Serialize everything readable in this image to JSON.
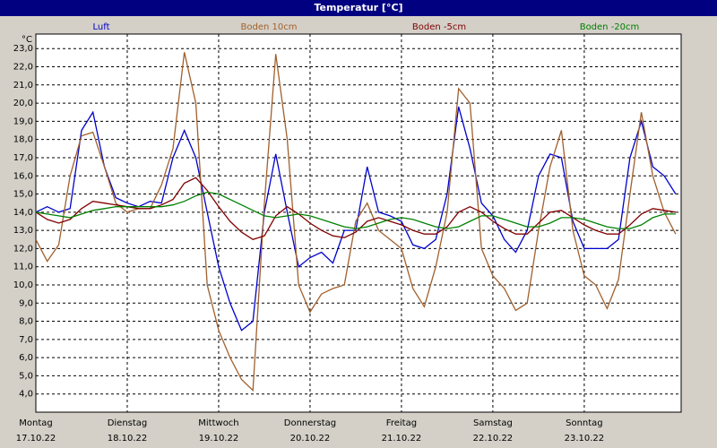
{
  "chart_data": {
    "type": "line",
    "title": "Temperatur [°C]",
    "y_unit": "°C",
    "x": [
      0,
      0.125,
      0.25,
      0.375,
      0.5,
      0.625,
      0.75,
      0.875,
      1,
      1.125,
      1.25,
      1.375,
      1.5,
      1.625,
      1.75,
      1.875,
      2,
      2.125,
      2.25,
      2.375,
      2.5,
      2.625,
      2.75,
      2.875,
      3,
      3.125,
      3.25,
      3.375,
      3.5,
      3.625,
      3.75,
      3.875,
      4,
      4.125,
      4.25,
      4.375,
      4.5,
      4.625,
      4.75,
      4.875,
      5,
      5.125,
      5.25,
      5.375,
      5.5,
      5.625,
      5.75,
      5.875,
      6,
      6.125,
      6.25,
      6.375,
      6.5,
      6.625,
      6.75,
      6.875,
      7
    ],
    "xlim": [
      0,
      7.06
    ],
    "xticks": [
      {
        "value": 0,
        "label": "Montag"
      },
      {
        "value": 1,
        "label": "Dienstag"
      },
      {
        "value": 2,
        "label": "Mittwoch"
      },
      {
        "value": 3,
        "label": "Donnerstag"
      },
      {
        "value": 4,
        "label": "Freitag"
      },
      {
        "value": 5,
        "label": "Samstag"
      },
      {
        "value": 6,
        "label": "Sonntag"
      }
    ],
    "xtick_dates": [
      "17.10.22",
      "18.10.22",
      "19.10.22",
      "20.10.22",
      "21.10.22",
      "22.10.22",
      "23.10.22"
    ],
    "ylim": [
      3,
      23.8
    ],
    "yticks": [
      {
        "value": 4,
        "label": "4,0"
      },
      {
        "value": 5,
        "label": "5,0"
      },
      {
        "value": 6,
        "label": "6,0"
      },
      {
        "value": 7,
        "label": "7,0"
      },
      {
        "value": 8,
        "label": "8,0"
      },
      {
        "value": 9,
        "label": "9,0"
      },
      {
        "value": 10,
        "label": "10,0"
      },
      {
        "value": 11,
        "label": "11,0"
      },
      {
        "value": 12,
        "label": "12,0"
      },
      {
        "value": 13,
        "label": "13,0"
      },
      {
        "value": 14,
        "label": "14,0"
      },
      {
        "value": 15,
        "label": "15,0"
      },
      {
        "value": 16,
        "label": "16,0"
      },
      {
        "value": 17,
        "label": "17,0"
      },
      {
        "value": 18,
        "label": "18,0"
      },
      {
        "value": 19,
        "label": "19,0"
      },
      {
        "value": 20,
        "label": "20,0"
      },
      {
        "value": 21,
        "label": "21,0"
      },
      {
        "value": 22,
        "label": "22,0"
      },
      {
        "value": 23,
        "label": "23,0"
      }
    ],
    "grid": true,
    "series": [
      {
        "name": "Luft",
        "color": "#0000cc",
        "values": [
          14.0,
          14.3,
          14.0,
          14.2,
          18.5,
          19.5,
          16.5,
          14.8,
          14.5,
          14.3,
          14.6,
          14.5,
          17.0,
          18.5,
          17.0,
          14.0,
          11.0,
          9.0,
          7.5,
          8.0,
          14.0,
          17.2,
          14.0,
          11.0,
          11.5,
          11.8,
          11.2,
          13.0,
          13.0,
          16.5,
          14.0,
          13.8,
          13.5,
          12.2,
          12.0,
          12.5,
          15.0,
          19.8,
          17.5,
          14.5,
          13.8,
          12.5,
          11.8,
          13.0,
          16.0,
          17.2,
          17.0,
          13.5,
          12.0,
          12.0,
          12.0,
          12.5,
          17.0,
          19.0,
          16.5,
          16.0,
          15.0
        ]
      },
      {
        "name": "Boden 10cm",
        "color": "#a0602d",
        "values": [
          12.5,
          11.3,
          12.2,
          16.0,
          18.2,
          18.4,
          16.5,
          14.5,
          14.0,
          14.2,
          14.2,
          15.5,
          17.5,
          22.8,
          20.0,
          10.0,
          7.5,
          6.0,
          4.8,
          4.2,
          14.5,
          22.7,
          18.0,
          10.0,
          8.5,
          9.5,
          9.8,
          10.0,
          13.5,
          14.5,
          13.0,
          12.5,
          12.0,
          9.8,
          8.8,
          11.0,
          14.0,
          20.8,
          20.0,
          12.0,
          10.5,
          9.8,
          8.6,
          9.0,
          13.0,
          16.5,
          18.5,
          13.0,
          10.5,
          10.0,
          8.7,
          10.3,
          15.0,
          19.5,
          16.0,
          14.0,
          12.8
        ]
      },
      {
        "name": "Boden -5cm",
        "color": "#800000",
        "values": [
          14.0,
          13.6,
          13.4,
          13.6,
          14.2,
          14.6,
          14.5,
          14.4,
          14.3,
          14.2,
          14.2,
          14.4,
          14.7,
          15.6,
          15.9,
          15.2,
          14.3,
          13.5,
          12.9,
          12.5,
          12.7,
          13.8,
          14.3,
          13.9,
          13.4,
          13.0,
          12.7,
          12.6,
          12.9,
          13.5,
          13.7,
          13.5,
          13.3,
          13.0,
          12.8,
          12.8,
          13.2,
          14.0,
          14.3,
          14.0,
          13.5,
          13.1,
          12.8,
          12.8,
          13.4,
          14.0,
          14.1,
          13.7,
          13.3,
          13.0,
          12.8,
          12.8,
          13.3,
          13.9,
          14.2,
          14.1,
          14.0
        ]
      },
      {
        "name": "Boden -20cm",
        "color": "#008000",
        "values": [
          14.0,
          13.9,
          13.8,
          13.7,
          13.9,
          14.1,
          14.2,
          14.3,
          14.3,
          14.3,
          14.3,
          14.3,
          14.4,
          14.6,
          14.9,
          15.1,
          15.0,
          14.7,
          14.4,
          14.1,
          13.8,
          13.7,
          13.8,
          13.9,
          13.8,
          13.6,
          13.4,
          13.2,
          13.1,
          13.2,
          13.4,
          13.6,
          13.7,
          13.6,
          13.4,
          13.2,
          13.1,
          13.2,
          13.5,
          13.8,
          13.8,
          13.6,
          13.4,
          13.2,
          13.2,
          13.4,
          13.7,
          13.7,
          13.6,
          13.4,
          13.2,
          13.1,
          13.1,
          13.3,
          13.7,
          13.9,
          13.9
        ]
      }
    ]
  }
}
